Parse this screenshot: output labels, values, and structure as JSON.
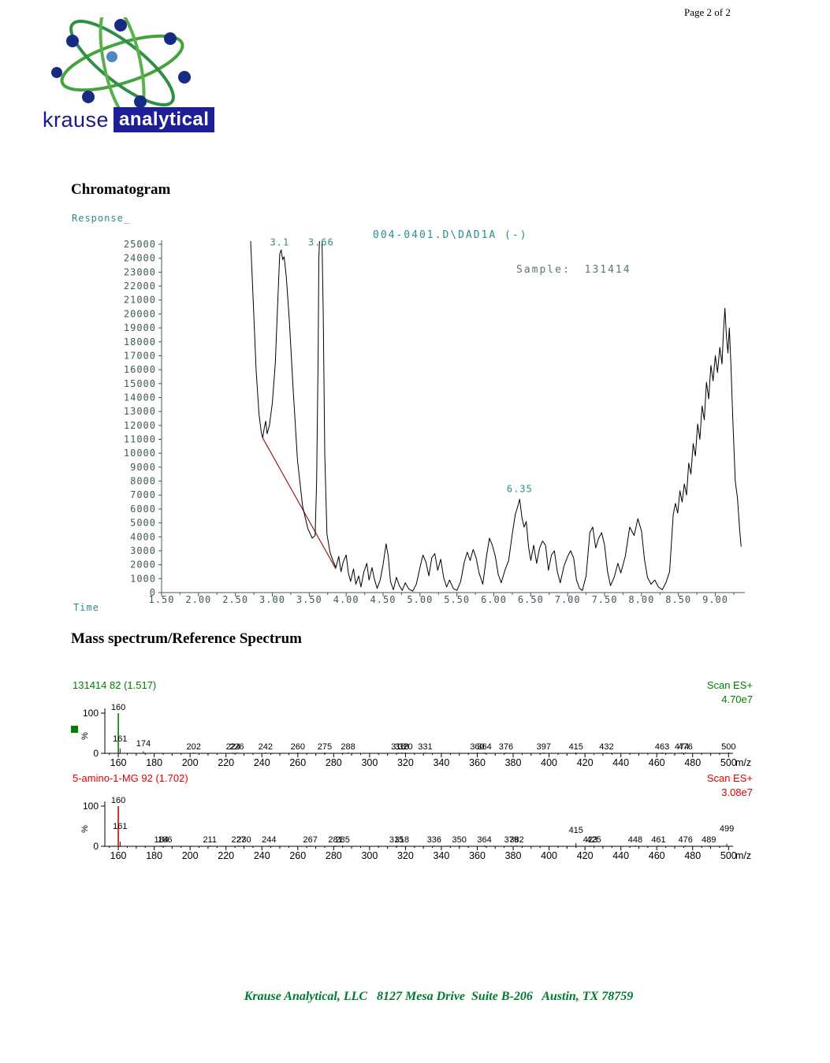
{
  "page": {
    "label": "Page 2 of 2"
  },
  "logo": {
    "krause": "krause",
    "analytical": "analytical"
  },
  "sections": {
    "chromatogram_heading": "Chromatogram",
    "mass_spectrum_heading": "Mass spectrum/Reference Spectrum"
  },
  "footer": {
    "text": "Krause Analytical, LLC   8127 Mesa Drive  Suite B-206   Austin, TX 78759"
  },
  "chart_data": [
    {
      "type": "line",
      "name": "chromatogram",
      "title": "004-0401.D\\DAD1A (-)",
      "sample_label": "Sample: 131414",
      "xlabel": "Time",
      "ylabel": "Response_",
      "xlim": [
        1.5,
        9.4
      ],
      "ylim": [
        0,
        25000
      ],
      "y_tick_step": 1000,
      "x_tick_step": 0.5,
      "x_minor_step": 0.25,
      "x_tick_max": 9.0,
      "x_minor_max": 9.25,
      "grid": false,
      "colors": {
        "trace": "#000000",
        "baseline": "#9b1c1c",
        "accent": "#2e8b8b",
        "axis_text": "#3e5858",
        "sample_text": "#5f7575"
      },
      "annotations": [
        {
          "label": "3.1",
          "t": 3.1,
          "at": 24800
        },
        {
          "label": "3.66",
          "t": 3.66,
          "at": 24800
        },
        {
          "label": "6.35",
          "t": 6.35,
          "at": 7100
        }
      ],
      "baseline_segment": [
        [
          2.87,
          11100
        ],
        [
          3.86,
          1700
        ]
      ],
      "trace": [
        [
          2.7,
          26000
        ],
        [
          2.74,
          21000
        ],
        [
          2.78,
          16000
        ],
        [
          2.82,
          12800
        ],
        [
          2.85,
          11500
        ],
        [
          2.87,
          11100
        ],
        [
          2.89,
          11800
        ],
        [
          2.91,
          12300
        ],
        [
          2.93,
          11400
        ],
        [
          2.96,
          12000
        ],
        [
          3.0,
          13600
        ],
        [
          3.04,
          16500
        ],
        [
          3.07,
          20500
        ],
        [
          3.1,
          24300
        ],
        [
          3.12,
          24600
        ],
        [
          3.14,
          23900
        ],
        [
          3.16,
          24100
        ],
        [
          3.19,
          22600
        ],
        [
          3.23,
          19500
        ],
        [
          3.28,
          14800
        ],
        [
          3.34,
          9500
        ],
        [
          3.41,
          6200
        ],
        [
          3.48,
          4600
        ],
        [
          3.54,
          3900
        ],
        [
          3.58,
          4100
        ],
        [
          3.6,
          8000
        ],
        [
          3.62,
          17000
        ],
        [
          3.63,
          24000
        ],
        [
          3.645,
          26000
        ],
        [
          3.67,
          26000
        ],
        [
          3.69,
          20000
        ],
        [
          3.71,
          10000
        ],
        [
          3.74,
          4200
        ],
        [
          3.78,
          2900
        ],
        [
          3.82,
          2300
        ],
        [
          3.86,
          1800
        ],
        [
          3.9,
          2600
        ],
        [
          3.93,
          1500
        ],
        [
          3.96,
          2200
        ],
        [
          4.0,
          2700
        ],
        [
          4.03,
          1400
        ],
        [
          4.06,
          800
        ],
        [
          4.1,
          1700
        ],
        [
          4.13,
          600
        ],
        [
          4.17,
          1200
        ],
        [
          4.2,
          400
        ],
        [
          4.24,
          1500
        ],
        [
          4.28,
          2100
        ],
        [
          4.31,
          900
        ],
        [
          4.35,
          1800
        ],
        [
          4.38,
          1000
        ],
        [
          4.42,
          300
        ],
        [
          4.46,
          900
        ],
        [
          4.5,
          2000
        ],
        [
          4.54,
          3500
        ],
        [
          4.57,
          2600
        ],
        [
          4.6,
          800
        ],
        [
          4.64,
          200
        ],
        [
          4.68,
          1100
        ],
        [
          4.72,
          500
        ],
        [
          4.76,
          150
        ],
        [
          4.8,
          700
        ],
        [
          4.85,
          250
        ],
        [
          4.9,
          100
        ],
        [
          4.95,
          600
        ],
        [
          5.0,
          1800
        ],
        [
          5.04,
          2700
        ],
        [
          5.08,
          2200
        ],
        [
          5.12,
          1200
        ],
        [
          5.16,
          2500
        ],
        [
          5.2,
          2800
        ],
        [
          5.24,
          1600
        ],
        [
          5.28,
          2400
        ],
        [
          5.32,
          1100
        ],
        [
          5.36,
          400
        ],
        [
          5.4,
          900
        ],
        [
          5.45,
          300
        ],
        [
          5.5,
          150
        ],
        [
          5.55,
          800
        ],
        [
          5.6,
          2200
        ],
        [
          5.64,
          2900
        ],
        [
          5.68,
          2300
        ],
        [
          5.72,
          3100
        ],
        [
          5.76,
          2500
        ],
        [
          5.8,
          1400
        ],
        [
          5.85,
          600
        ],
        [
          5.9,
          2600
        ],
        [
          5.94,
          3900
        ],
        [
          5.98,
          3400
        ],
        [
          6.02,
          2600
        ],
        [
          6.06,
          1300
        ],
        [
          6.1,
          700
        ],
        [
          6.15,
          1600
        ],
        [
          6.2,
          2300
        ],
        [
          6.25,
          4200
        ],
        [
          6.29,
          5600
        ],
        [
          6.33,
          6300
        ],
        [
          6.35,
          6700
        ],
        [
          6.38,
          5400
        ],
        [
          6.41,
          4700
        ],
        [
          6.44,
          5100
        ],
        [
          6.47,
          3300
        ],
        [
          6.5,
          2300
        ],
        [
          6.54,
          3400
        ],
        [
          6.58,
          2100
        ],
        [
          6.62,
          3200
        ],
        [
          6.66,
          3700
        ],
        [
          6.7,
          3400
        ],
        [
          6.74,
          1600
        ],
        [
          6.78,
          2700
        ],
        [
          6.82,
          3000
        ],
        [
          6.86,
          1500
        ],
        [
          6.9,
          700
        ],
        [
          6.95,
          1900
        ],
        [
          7.0,
          2600
        ],
        [
          7.04,
          3000
        ],
        [
          7.08,
          2500
        ],
        [
          7.12,
          900
        ],
        [
          7.16,
          300
        ],
        [
          7.2,
          150
        ],
        [
          7.25,
          1200
        ],
        [
          7.3,
          4300
        ],
        [
          7.34,
          4700
        ],
        [
          7.38,
          3200
        ],
        [
          7.42,
          3900
        ],
        [
          7.46,
          4300
        ],
        [
          7.5,
          3400
        ],
        [
          7.54,
          1500
        ],
        [
          7.58,
          500
        ],
        [
          7.63,
          1100
        ],
        [
          7.68,
          2100
        ],
        [
          7.72,
          1400
        ],
        [
          7.78,
          2600
        ],
        [
          7.84,
          4700
        ],
        [
          7.9,
          4100
        ],
        [
          7.95,
          5300
        ],
        [
          8.0,
          4400
        ],
        [
          8.04,
          2400
        ],
        [
          8.08,
          1100
        ],
        [
          8.13,
          600
        ],
        [
          8.18,
          900
        ],
        [
          8.23,
          400
        ],
        [
          8.28,
          200
        ],
        [
          8.33,
          700
        ],
        [
          8.38,
          1500
        ],
        [
          8.43,
          5600
        ],
        [
          8.46,
          6400
        ],
        [
          8.49,
          5700
        ],
        [
          8.52,
          7300
        ],
        [
          8.55,
          6500
        ],
        [
          8.58,
          7800
        ],
        [
          8.61,
          7000
        ],
        [
          8.64,
          9300
        ],
        [
          8.67,
          8500
        ],
        [
          8.7,
          10700
        ],
        [
          8.73,
          9800
        ],
        [
          8.76,
          12100
        ],
        [
          8.79,
          11000
        ],
        [
          8.82,
          13400
        ],
        [
          8.85,
          12400
        ],
        [
          8.88,
          15100
        ],
        [
          8.91,
          13900
        ],
        [
          8.94,
          16300
        ],
        [
          8.97,
          15200
        ],
        [
          9.0,
          17000
        ],
        [
          9.03,
          15800
        ],
        [
          9.06,
          17600
        ],
        [
          9.09,
          16400
        ],
        [
          9.11,
          18700
        ],
        [
          9.13,
          20400
        ],
        [
          9.15,
          18400
        ],
        [
          9.17,
          17200
        ],
        [
          9.19,
          19000
        ],
        [
          9.21,
          16500
        ],
        [
          9.24,
          12000
        ],
        [
          9.27,
          8000
        ],
        [
          9.3,
          6800
        ],
        [
          9.33,
          4500
        ],
        [
          9.35,
          3300
        ]
      ]
    },
    {
      "type": "bar",
      "name": "mass-spectrum-sample",
      "header": "131414 82 (1.517)",
      "scan_label": "Scan ES+",
      "intensity_label": "4.70e7",
      "color": "#008000",
      "ylabel": "%",
      "y_tick_labels": [
        "100",
        "0"
      ],
      "mz_axis_label": "m/z",
      "xlim": [
        152.5,
        502.5
      ],
      "ylim": [
        0,
        100
      ],
      "x_ticks": [
        160,
        180,
        200,
        220,
        240,
        260,
        280,
        300,
        320,
        340,
        360,
        380,
        400,
        420,
        440,
        460,
        480,
        500
      ],
      "peaks": [
        {
          "mz": 160,
          "pct": 100,
          "label": "160",
          "ly": 13
        },
        {
          "mz": 161,
          "pct": 12,
          "label": "161",
          "ly": 53
        },
        {
          "mz": 174,
          "pct": 5,
          "label": "174",
          "ly": 59
        },
        {
          "mz": 202,
          "pct": 2,
          "label": "202"
        },
        {
          "mz": 224,
          "pct": 2,
          "label": "224"
        },
        {
          "mz": 226,
          "pct": 2,
          "label": "226"
        },
        {
          "mz": 242,
          "pct": 2,
          "label": "242"
        },
        {
          "mz": 260,
          "pct": 2,
          "label": "260"
        },
        {
          "mz": 275,
          "pct": 2,
          "label": "275"
        },
        {
          "mz": 288,
          "pct": 2,
          "label": "288"
        },
        {
          "mz": 316,
          "pct": 2,
          "label": "316"
        },
        {
          "mz": 318,
          "pct": 2,
          "label": "318"
        },
        {
          "mz": 320,
          "pct": 2,
          "label": "320"
        },
        {
          "mz": 331,
          "pct": 2,
          "label": "331"
        },
        {
          "mz": 360,
          "pct": 2,
          "label": "360"
        },
        {
          "mz": 364,
          "pct": 2,
          "label": "364"
        },
        {
          "mz": 376,
          "pct": 2,
          "label": "376"
        },
        {
          "mz": 397,
          "pct": 2,
          "label": "397"
        },
        {
          "mz": 415,
          "pct": 2,
          "label": "415"
        },
        {
          "mz": 432,
          "pct": 2,
          "label": "432"
        },
        {
          "mz": 463,
          "pct": 2,
          "label": "463"
        },
        {
          "mz": 474,
          "pct": 2,
          "label": "474"
        },
        {
          "mz": 476,
          "pct": 2,
          "label": "476"
        },
        {
          "mz": 500,
          "pct": 2,
          "label": "500"
        }
      ]
    },
    {
      "type": "bar",
      "name": "mass-spectrum-reference",
      "header": "5-amino-1-MG 92 (1.702)",
      "scan_label": "Scan ES+",
      "intensity_label": "3.08e7",
      "color": "#e00000",
      "ylabel": "%",
      "y_tick_labels": [
        "100",
        "0"
      ],
      "mz_axis_label": "m/z",
      "xlim": [
        152.5,
        502.5
      ],
      "ylim": [
        0,
        100
      ],
      "x_ticks": [
        160,
        180,
        200,
        220,
        240,
        260,
        280,
        300,
        320,
        340,
        360,
        380,
        400,
        420,
        440,
        460,
        480,
        500
      ],
      "peaks": [
        {
          "mz": 160,
          "pct": 100,
          "label": "160",
          "ly": 13
        },
        {
          "mz": 161,
          "pct": 12,
          "label": "161",
          "ly": 46
        },
        {
          "mz": 184,
          "pct": 2,
          "label": "184"
        },
        {
          "mz": 186,
          "pct": 2,
          "label": "186"
        },
        {
          "mz": 211,
          "pct": 2,
          "label": "211"
        },
        {
          "mz": 227,
          "pct": 2,
          "label": "227"
        },
        {
          "mz": 230,
          "pct": 2,
          "label": "230"
        },
        {
          "mz": 244,
          "pct": 2,
          "label": "244"
        },
        {
          "mz": 267,
          "pct": 2,
          "label": "267"
        },
        {
          "mz": 281,
          "pct": 2,
          "label": "281"
        },
        {
          "mz": 285,
          "pct": 2,
          "label": "285"
        },
        {
          "mz": 315,
          "pct": 2,
          "label": "315"
        },
        {
          "mz": 318,
          "pct": 2,
          "label": "318"
        },
        {
          "mz": 336,
          "pct": 2,
          "label": "336"
        },
        {
          "mz": 350,
          "pct": 2,
          "label": "350"
        },
        {
          "mz": 364,
          "pct": 2,
          "label": "364"
        },
        {
          "mz": 379,
          "pct": 2,
          "label": "379"
        },
        {
          "mz": 382,
          "pct": 2,
          "label": "382"
        },
        {
          "mz": 415,
          "pct": 8,
          "label": "415",
          "ly": 51
        },
        {
          "mz": 423,
          "pct": 2,
          "label": "423"
        },
        {
          "mz": 425,
          "pct": 2,
          "label": "425"
        },
        {
          "mz": 448,
          "pct": 2,
          "label": "448"
        },
        {
          "mz": 461,
          "pct": 2,
          "label": "461"
        },
        {
          "mz": 476,
          "pct": 2,
          "label": "476"
        },
        {
          "mz": 489,
          "pct": 2,
          "label": "489"
        },
        {
          "mz": 499,
          "pct": 6,
          "label": "499",
          "ly": 49
        }
      ]
    }
  ]
}
